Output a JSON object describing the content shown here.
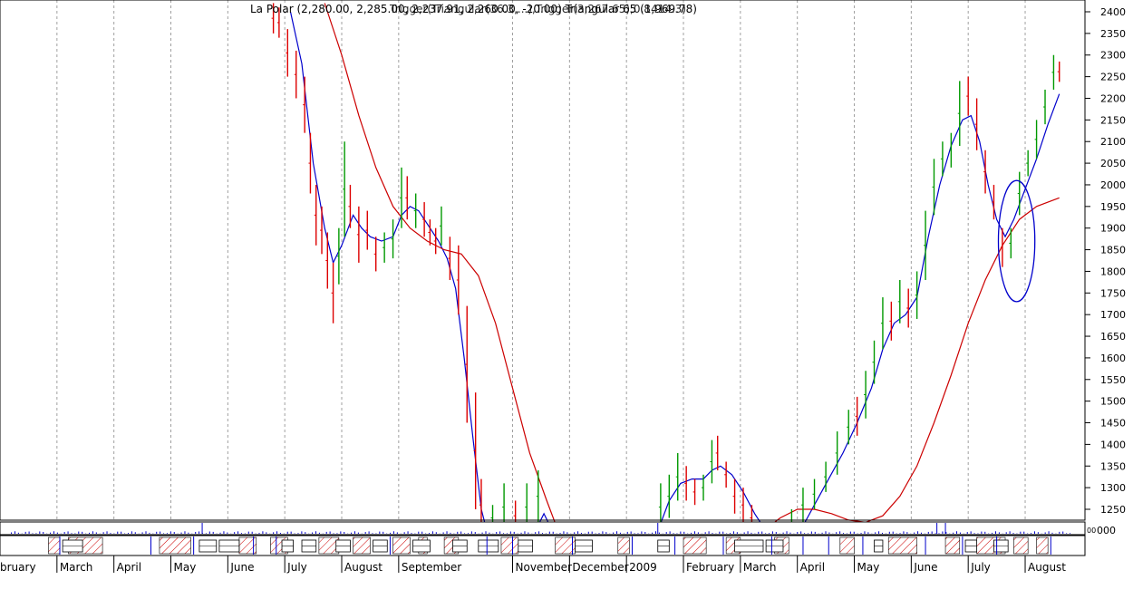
{
  "chart_data": {
    "type": "bar",
    "title": "La Polar (2,280.00, 2,285.00, 2,237.91, 2,260.00, -20.00) Triangular 65 (1,969.78)",
    "title_overlap": "Trigger(Triangular(36.3,...),Trigger(3,267.65),0.8414.3)",
    "ylim": [
      1200,
      2420
    ],
    "y_ticks": [
      1250,
      1300,
      1350,
      1400,
      1450,
      1500,
      1550,
      1600,
      1650,
      1700,
      1750,
      1800,
      1850,
      1900,
      1950,
      2000,
      2050,
      2100,
      2150,
      2200,
      2250,
      2300,
      2350,
      2400
    ],
    "volume_label": "000",
    "volume_label_prefix": "00",
    "x_months": [
      {
        "label": "bruary",
        "pos": 0.0
      },
      {
        "label": "March",
        "pos": 1.0
      },
      {
        "label": "April",
        "pos": 2.0
      },
      {
        "label": "May",
        "pos": 3.0
      },
      {
        "label": "June",
        "pos": 4.0
      },
      {
        "label": "July",
        "pos": 5.0
      },
      {
        "label": "August",
        "pos": 6.0
      },
      {
        "label": "September",
        "pos": 7.0
      },
      {
        "label": "November",
        "pos": 9.0
      },
      {
        "label": "December",
        "pos": 10.0
      },
      {
        "label": "2009",
        "pos": 11.0
      },
      {
        "label": "February",
        "pos": 12.0
      },
      {
        "label": "March",
        "pos": 13.0
      },
      {
        "label": "April",
        "pos": 14.0
      },
      {
        "label": "May",
        "pos": 15.0
      },
      {
        "label": "June",
        "pos": 16.0
      },
      {
        "label": "July",
        "pos": 17.0
      },
      {
        "label": "August",
        "pos": 18.0
      }
    ],
    "price_bars": [
      {
        "t": 4.3,
        "h": 2420,
        "l": 2350,
        "up": false
      },
      {
        "t": 4.4,
        "h": 2410,
        "l": 2340,
        "up": false
      },
      {
        "t": 4.55,
        "h": 2360,
        "l": 2250,
        "up": false
      },
      {
        "t": 4.7,
        "h": 2310,
        "l": 2200,
        "up": false
      },
      {
        "t": 4.85,
        "h": 2250,
        "l": 2120,
        "up": false
      },
      {
        "t": 4.95,
        "h": 2120,
        "l": 1980,
        "up": false
      },
      {
        "t": 5.05,
        "h": 2000,
        "l": 1860,
        "up": false
      },
      {
        "t": 5.15,
        "h": 1950,
        "l": 1840,
        "up": false
      },
      {
        "t": 5.25,
        "h": 1890,
        "l": 1760,
        "up": false
      },
      {
        "t": 5.35,
        "h": 1820,
        "l": 1680,
        "up": false
      },
      {
        "t": 5.45,
        "h": 1900,
        "l": 1770,
        "up": true
      },
      {
        "t": 5.55,
        "h": 2100,
        "l": 1880,
        "up": true
      },
      {
        "t": 5.65,
        "h": 2000,
        "l": 1900,
        "up": false
      },
      {
        "t": 5.8,
        "h": 1950,
        "l": 1820,
        "up": false
      },
      {
        "t": 5.95,
        "h": 1940,
        "l": 1850,
        "up": false
      },
      {
        "t": 6.1,
        "h": 1880,
        "l": 1800,
        "up": false
      },
      {
        "t": 6.25,
        "h": 1890,
        "l": 1820,
        "up": true
      },
      {
        "t": 6.4,
        "h": 1920,
        "l": 1830,
        "up": true
      },
      {
        "t": 6.55,
        "h": 2040,
        "l": 1900,
        "up": true
      },
      {
        "t": 6.65,
        "h": 2020,
        "l": 1920,
        "up": false
      },
      {
        "t": 6.8,
        "h": 1980,
        "l": 1900,
        "up": true
      },
      {
        "t": 6.95,
        "h": 1960,
        "l": 1880,
        "up": false
      },
      {
        "t": 7.05,
        "h": 1920,
        "l": 1860,
        "up": false
      },
      {
        "t": 7.15,
        "h": 1900,
        "l": 1840,
        "up": false
      },
      {
        "t": 7.25,
        "h": 1950,
        "l": 1860,
        "up": true
      },
      {
        "t": 7.4,
        "h": 1880,
        "l": 1780,
        "up": false
      },
      {
        "t": 7.55,
        "h": 1860,
        "l": 1700,
        "up": false
      },
      {
        "t": 7.7,
        "h": 1720,
        "l": 1450,
        "up": false
      },
      {
        "t": 7.85,
        "h": 1520,
        "l": 1250,
        "up": false
      },
      {
        "t": 7.95,
        "h": 1320,
        "l": 1200,
        "up": false
      },
      {
        "t": 8.15,
        "h": 1260,
        "l": 1200,
        "up": true
      },
      {
        "t": 8.35,
        "h": 1310,
        "l": 1200,
        "up": true
      },
      {
        "t": 8.55,
        "h": 1270,
        "l": 1200,
        "up": false
      },
      {
        "t": 8.75,
        "h": 1310,
        "l": 1200,
        "up": true
      },
      {
        "t": 8.95,
        "h": 1340,
        "l": 1220,
        "up": true
      },
      {
        "t": 11.1,
        "h": 1310,
        "l": 1200,
        "up": true
      },
      {
        "t": 11.25,
        "h": 1330,
        "l": 1230,
        "up": true
      },
      {
        "t": 11.4,
        "h": 1380,
        "l": 1270,
        "up": true
      },
      {
        "t": 11.55,
        "h": 1350,
        "l": 1270,
        "up": false
      },
      {
        "t": 11.7,
        "h": 1320,
        "l": 1260,
        "up": false
      },
      {
        "t": 11.85,
        "h": 1330,
        "l": 1270,
        "up": true
      },
      {
        "t": 12.0,
        "h": 1410,
        "l": 1310,
        "up": true
      },
      {
        "t": 12.1,
        "h": 1420,
        "l": 1340,
        "up": false
      },
      {
        "t": 12.25,
        "h": 1360,
        "l": 1300,
        "up": false
      },
      {
        "t": 12.4,
        "h": 1320,
        "l": 1240,
        "up": false
      },
      {
        "t": 12.55,
        "h": 1300,
        "l": 1220,
        "up": false
      },
      {
        "t": 12.7,
        "h": 1260,
        "l": 1200,
        "up": false
      },
      {
        "t": 13.4,
        "h": 1250,
        "l": 1200,
        "up": true
      },
      {
        "t": 13.6,
        "h": 1300,
        "l": 1220,
        "up": true
      },
      {
        "t": 13.8,
        "h": 1320,
        "l": 1250,
        "up": true
      },
      {
        "t": 14.0,
        "h": 1360,
        "l": 1290,
        "up": true
      },
      {
        "t": 14.2,
        "h": 1430,
        "l": 1330,
        "up": true
      },
      {
        "t": 14.4,
        "h": 1480,
        "l": 1400,
        "up": true
      },
      {
        "t": 14.55,
        "h": 1510,
        "l": 1420,
        "up": false
      },
      {
        "t": 14.7,
        "h": 1570,
        "l": 1460,
        "up": true
      },
      {
        "t": 14.85,
        "h": 1640,
        "l": 1540,
        "up": true
      },
      {
        "t": 15.0,
        "h": 1740,
        "l": 1620,
        "up": true
      },
      {
        "t": 15.15,
        "h": 1730,
        "l": 1640,
        "up": false
      },
      {
        "t": 15.3,
        "h": 1780,
        "l": 1680,
        "up": true
      },
      {
        "t": 15.45,
        "h": 1760,
        "l": 1670,
        "up": false
      },
      {
        "t": 15.6,
        "h": 1800,
        "l": 1690,
        "up": true
      },
      {
        "t": 15.75,
        "h": 1940,
        "l": 1780,
        "up": true
      },
      {
        "t": 15.9,
        "h": 2060,
        "l": 1930,
        "up": true
      },
      {
        "t": 16.05,
        "h": 2100,
        "l": 2020,
        "up": true
      },
      {
        "t": 16.2,
        "h": 2120,
        "l": 2040,
        "up": true
      },
      {
        "t": 16.35,
        "h": 2240,
        "l": 2090,
        "up": true
      },
      {
        "t": 16.5,
        "h": 2250,
        "l": 2160,
        "up": false
      },
      {
        "t": 16.65,
        "h": 2200,
        "l": 2080,
        "up": false
      },
      {
        "t": 16.8,
        "h": 2080,
        "l": 1980,
        "up": false
      },
      {
        "t": 16.95,
        "h": 2000,
        "l": 1920,
        "up": false
      },
      {
        "t": 17.1,
        "h": 1900,
        "l": 1810,
        "up": false
      },
      {
        "t": 17.25,
        "h": 1900,
        "l": 1830,
        "up": true
      },
      {
        "t": 17.4,
        "h": 2030,
        "l": 1930,
        "up": true
      },
      {
        "t": 17.55,
        "h": 2080,
        "l": 2020,
        "up": true
      },
      {
        "t": 17.7,
        "h": 2150,
        "l": 2060,
        "up": true
      },
      {
        "t": 17.85,
        "h": 2220,
        "l": 2140,
        "up": true
      },
      {
        "t": 18.0,
        "h": 2300,
        "l": 2220,
        "up": true
      },
      {
        "t": 18.1,
        "h": 2285,
        "l": 2238,
        "up": false
      }
    ],
    "series": [
      {
        "color": "#0000cc",
        "points": [
          [
            4.6,
            2400
          ],
          [
            4.8,
            2280
          ],
          [
            5.0,
            2050
          ],
          [
            5.2,
            1900
          ],
          [
            5.35,
            1820
          ],
          [
            5.5,
            1860
          ],
          [
            5.7,
            1930
          ],
          [
            5.85,
            1900
          ],
          [
            6.0,
            1880
          ],
          [
            6.2,
            1870
          ],
          [
            6.4,
            1880
          ],
          [
            6.55,
            1930
          ],
          [
            6.7,
            1950
          ],
          [
            6.85,
            1940
          ],
          [
            7.0,
            1910
          ],
          [
            7.2,
            1870
          ],
          [
            7.35,
            1830
          ],
          [
            7.5,
            1760
          ],
          [
            7.65,
            1600
          ],
          [
            7.8,
            1420
          ],
          [
            7.95,
            1250
          ],
          [
            8.05,
            1200
          ]
        ]
      },
      {
        "color": "#0000cc",
        "points": [
          [
            8.9,
            1200
          ],
          [
            9.05,
            1240
          ],
          [
            9.2,
            1200
          ]
        ]
      },
      {
        "color": "#0000cc",
        "points": [
          [
            11.05,
            1200
          ],
          [
            11.25,
            1270
          ],
          [
            11.45,
            1310
          ],
          [
            11.65,
            1320
          ],
          [
            11.85,
            1320
          ],
          [
            12.0,
            1340
          ],
          [
            12.15,
            1350
          ],
          [
            12.35,
            1330
          ],
          [
            12.55,
            1290
          ],
          [
            12.75,
            1240
          ],
          [
            12.95,
            1200
          ]
        ]
      },
      {
        "color": "#0000cc",
        "points": [
          [
            13.55,
            1200
          ],
          [
            13.8,
            1260
          ],
          [
            14.05,
            1320
          ],
          [
            14.3,
            1380
          ],
          [
            14.55,
            1450
          ],
          [
            14.8,
            1530
          ],
          [
            15.0,
            1620
          ],
          [
            15.2,
            1680
          ],
          [
            15.4,
            1700
          ],
          [
            15.6,
            1740
          ],
          [
            15.8,
            1880
          ],
          [
            16.0,
            2000
          ],
          [
            16.2,
            2090
          ],
          [
            16.4,
            2150
          ],
          [
            16.55,
            2160
          ],
          [
            16.7,
            2100
          ],
          [
            16.85,
            2000
          ],
          [
            17.0,
            1920
          ],
          [
            17.15,
            1880
          ],
          [
            17.3,
            1920
          ],
          [
            17.5,
            1990
          ],
          [
            17.7,
            2060
          ],
          [
            17.9,
            2140
          ],
          [
            18.1,
            2210
          ]
        ]
      },
      {
        "color": "#cc0000",
        "points": [
          [
            5.2,
            2420
          ],
          [
            5.5,
            2300
          ],
          [
            5.8,
            2160
          ],
          [
            6.1,
            2040
          ],
          [
            6.4,
            1950
          ],
          [
            6.7,
            1900
          ],
          [
            7.0,
            1870
          ],
          [
            7.3,
            1850
          ],
          [
            7.6,
            1840
          ],
          [
            7.9,
            1790
          ],
          [
            8.2,
            1680
          ],
          [
            8.5,
            1530
          ],
          [
            8.8,
            1380
          ],
          [
            9.1,
            1270
          ],
          [
            9.3,
            1200
          ]
        ]
      },
      {
        "color": "#cc0000",
        "points": [
          [
            12.9,
            1200
          ],
          [
            13.2,
            1230
          ],
          [
            13.5,
            1250
          ],
          [
            13.8,
            1250
          ],
          [
            14.1,
            1240
          ],
          [
            14.4,
            1225
          ],
          [
            14.7,
            1220
          ],
          [
            15.0,
            1235
          ],
          [
            15.3,
            1280
          ],
          [
            15.6,
            1350
          ],
          [
            15.9,
            1450
          ],
          [
            16.2,
            1560
          ],
          [
            16.5,
            1680
          ],
          [
            16.8,
            1780
          ],
          [
            17.1,
            1860
          ],
          [
            17.4,
            1920
          ],
          [
            17.7,
            1950
          ],
          [
            18.1,
            1970
          ]
        ]
      }
    ],
    "annotation": {
      "shape": "ellipse",
      "cx": 17.35,
      "cy": 1870,
      "rx": 0.32,
      "ry": 140,
      "color": "#0000cc"
    }
  }
}
